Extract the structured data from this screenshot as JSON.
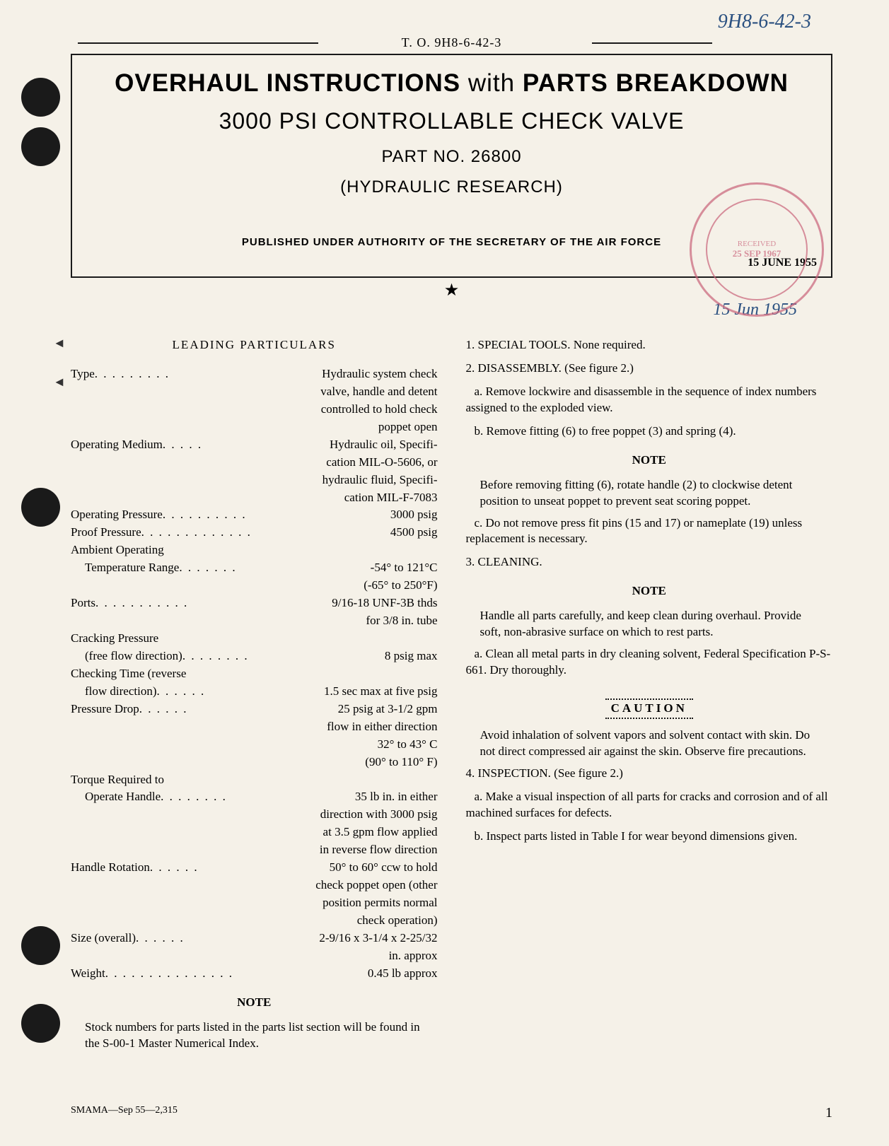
{
  "header": {
    "to_number": "T. O. 9H8-6-42-3",
    "handwritten_ref": "9H8-6-42-3"
  },
  "title_box": {
    "main_title": "OVERHAUL INSTRUCTIONS with PARTS BREAKDOWN",
    "subtitle": "3000 PSI CONTROLLABLE CHECK VALVE",
    "part_no": "PART NO. 26800",
    "organization": "(HYDRAULIC RESEARCH)",
    "published": "PUBLISHED UNDER AUTHORITY OF THE SECRETARY OF THE AIR FORCE",
    "date": "15 JUNE 1955"
  },
  "handwritten_date": "15 Jun 1955",
  "stamp": {
    "line1": "RECEIVED",
    "line2": "25 SEP 1967"
  },
  "left_column": {
    "section_title": "LEADING PARTICULARS",
    "specs": [
      {
        "label": "Type",
        "dots": " . . . . . . . . . ",
        "value": "Hydraulic system check",
        "continuation": [
          "valve, handle and detent",
          "controlled to hold check",
          "poppet open"
        ]
      },
      {
        "label": "Operating Medium",
        "dots": " . . . . .",
        "value": "Hydraulic oil, Specifi-",
        "continuation": [
          "cation MIL-O-5606, or",
          "hydraulic fluid, Specifi-",
          "cation MIL-F-7083"
        ]
      },
      {
        "label": "Operating Pressure",
        "dots": " . . . . . . . . . . ",
        "value": "3000 psig"
      },
      {
        "label": "Proof Pressure",
        "dots": " . . . . . . . . . . . . . ",
        "value": "4500 psig"
      },
      {
        "label": "Ambient Operating",
        "indent_next": true
      },
      {
        "label": "Temperature Range",
        "dots": " . . . . . . . ",
        "value": "-54° to 121°C",
        "indent": true,
        "continuation": [
          "(-65° to 250°F)"
        ]
      },
      {
        "label": "Ports",
        "dots": " . . . . . . . . . . . ",
        "value": "9/16-18 UNF-3B thds",
        "continuation": [
          "for 3/8 in. tube"
        ]
      },
      {
        "label": "Cracking Pressure",
        "indent_next": true
      },
      {
        "label": "(free flow direction)",
        "dots": " . . . . . . . .",
        "value": "8 psig max",
        "indent": true
      },
      {
        "label": "Checking Time (reverse",
        "indent_next": true
      },
      {
        "label": "flow direction)",
        "dots": ". . . . . .",
        "value": "1.5 sec max at five psig",
        "indent": true
      },
      {
        "label": "Pressure Drop",
        "dots": " . . . . . .",
        "value": "25 psig at 3-1/2 gpm",
        "continuation": [
          "flow in either direction",
          "32° to 43° C",
          "(90° to 110° F)"
        ]
      },
      {
        "label": "Torque Required to",
        "indent_next": true
      },
      {
        "label": "Operate Handle",
        "dots": " . . . . . . . .",
        "value": "35 lb in. in either",
        "indent": true,
        "continuation": [
          "direction with 3000 psig",
          "at 3.5 gpm flow applied",
          "in reverse flow direction"
        ]
      },
      {
        "label": "Handle Rotation",
        "dots": " . . . . . .",
        "value": "50° to 60° ccw to hold",
        "continuation": [
          "check poppet open (other",
          "position permits normal",
          "check operation)"
        ]
      },
      {
        "label": "Size (overall)",
        "dots": ". . . . . .",
        "value": "2-9/16 x 3-1/4 x 2-25/32",
        "continuation": [
          "in. approx"
        ]
      },
      {
        "label": "Weight",
        "dots": " . . . . . . . . . . . . . . .",
        "value": "0.45 lb approx"
      }
    ],
    "note_header": "NOTE",
    "note_text": "Stock numbers for parts listed in the parts list section will be found in the S-00-1 Master Numerical Index."
  },
  "right_column": {
    "sections": [
      {
        "text": "1.  SPECIAL TOOLS.  None required."
      },
      {
        "text": "2.  DISASSEMBLY.  (See figure 2.)"
      },
      {
        "text": "a.  Remove lockwire and disassemble in the sequence of index numbers assigned to the exploded view.",
        "indent": true
      },
      {
        "text": "b.  Remove fitting (6) to free poppet (3) and spring (4).",
        "indent": true
      },
      {
        "type": "note",
        "header": "NOTE",
        "text": "Before removing fitting (6), rotate handle (2) to clockwise detent position to unseat poppet to prevent seat scoring poppet."
      },
      {
        "text": "c.  Do not remove press fit pins (15 and 17) or nameplate (19) unless replacement is necessary.",
        "indent": true
      },
      {
        "text": "3.  CLEANING."
      },
      {
        "type": "note",
        "header": "NOTE",
        "text": "Handle all parts carefully, and keep clean during overhaul. Provide soft, non-abrasive surface on which to rest parts."
      },
      {
        "text": "a.  Clean all metal parts in dry cleaning solvent, Federal Specification P-S-661. Dry thoroughly.",
        "indent": true
      },
      {
        "type": "caution",
        "header": "CAUTION",
        "text": "Avoid inhalation of solvent vapors and solvent contact with skin. Do not direct compressed air against the skin. Observe fire precautions."
      },
      {
        "text": "4.  INSPECTION.  (See figure 2.)"
      },
      {
        "text": "a.  Make a visual inspection of all parts for cracks and corrosion and of all machined surfaces for defects.",
        "indent": true
      },
      {
        "text": "b.  Inspect parts listed in Table I for wear beyond dimensions given.",
        "indent": true
      }
    ]
  },
  "footer": {
    "left": "SMAMA—Sep 55—2,315",
    "page": "1"
  }
}
